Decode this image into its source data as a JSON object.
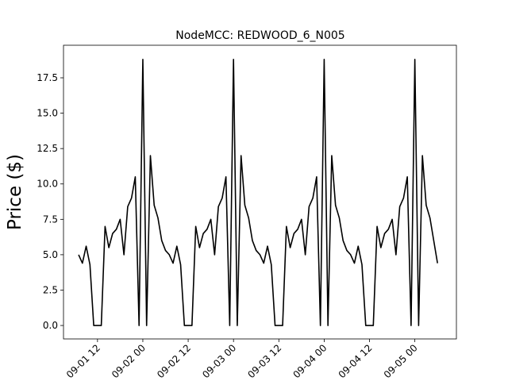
{
  "chart_data": {
    "type": "line",
    "title": "NodeMCC: REDWOOD_6_N005",
    "y_label": "Price ($)",
    "x": [
      "09-01 07",
      "09-01 08",
      "09-01 09",
      "09-01 10",
      "09-01 11",
      "09-01 12",
      "09-01 13",
      "09-01 14",
      "09-01 15",
      "09-01 16",
      "09-01 17",
      "09-01 18",
      "09-01 19",
      "09-01 20",
      "09-01 21",
      "09-01 22",
      "09-01 23",
      "09-02 00",
      "09-02 01",
      "09-02 02",
      "09-02 03",
      "09-02 04",
      "09-02 05",
      "09-02 06",
      "09-02 07",
      "09-02 08",
      "09-02 09",
      "09-02 10",
      "09-02 11",
      "09-02 12",
      "09-02 13",
      "09-02 14",
      "09-02 15",
      "09-02 16",
      "09-02 17",
      "09-02 18",
      "09-02 19",
      "09-02 20",
      "09-02 21",
      "09-02 22",
      "09-02 23",
      "09-03 00",
      "09-03 01",
      "09-03 02",
      "09-03 03",
      "09-03 04",
      "09-03 05",
      "09-03 06",
      "09-03 07",
      "09-03 08",
      "09-03 09",
      "09-03 10",
      "09-03 11",
      "09-03 12",
      "09-03 13",
      "09-03 14",
      "09-03 15",
      "09-03 16",
      "09-03 17",
      "09-03 18",
      "09-03 19",
      "09-03 20",
      "09-03 21",
      "09-03 22",
      "09-03 23",
      "09-04 00",
      "09-04 01",
      "09-04 02",
      "09-04 03",
      "09-04 04",
      "09-04 05",
      "09-04 06",
      "09-04 07",
      "09-04 08",
      "09-04 09",
      "09-04 10",
      "09-04 11",
      "09-04 12",
      "09-04 13",
      "09-04 14",
      "09-04 15",
      "09-04 16",
      "09-04 17",
      "09-04 18",
      "09-04 19",
      "09-04 20",
      "09-04 21",
      "09-04 22",
      "09-04 23",
      "09-05 00",
      "09-05 01",
      "09-05 02",
      "09-05 03",
      "09-05 04",
      "09-05 05",
      "09-05 06"
    ],
    "series": [
      {
        "color": "#000000",
        "values": [
          5.0,
          4.4,
          5.6,
          4.3,
          0,
          0,
          0,
          7.0,
          5.5,
          6.5,
          6.8,
          7.5,
          5.0,
          8.4,
          9.0,
          10.5,
          0,
          18.8,
          0,
          12.0,
          8.5,
          7.6,
          6.0,
          5.3,
          5.0,
          4.4,
          5.6,
          4.3,
          0,
          0,
          0,
          7.0,
          5.5,
          6.5,
          6.8,
          7.5,
          5.0,
          8.4,
          9.0,
          10.5,
          0,
          18.8,
          0,
          12.0,
          8.5,
          7.6,
          6.0,
          5.3,
          5.0,
          4.4,
          5.6,
          4.3,
          0,
          0,
          0,
          7.0,
          5.5,
          6.5,
          6.8,
          7.5,
          5.0,
          8.4,
          9.0,
          10.5,
          0,
          18.8,
          0,
          12.0,
          8.5,
          7.6,
          6.0,
          5.3,
          5.0,
          4.4,
          5.6,
          4.3,
          0,
          0,
          0,
          7.0,
          5.5,
          6.5,
          6.8,
          7.5,
          5.0,
          8.4,
          9.0,
          10.5,
          0,
          18.8,
          0,
          12.0,
          8.5,
          7.6,
          6.0,
          4.4
        ]
      }
    ],
    "xlim": [
      "09-01 03",
      "09-05 11"
    ],
    "xticks": [
      "09-01 12",
      "09-02 00",
      "09-02 12",
      "09-03 00",
      "09-03 12",
      "09-04 00",
      "09-04 12",
      "09-05 00"
    ],
    "ylim": [
      -0.95,
      19.8
    ],
    "yticks": [
      {
        "value": 0,
        "label": "0.0"
      },
      {
        "value": 2.5,
        "label": "2.5"
      },
      {
        "value": 5,
        "label": "5.0"
      },
      {
        "value": 7.5,
        "label": "7.5"
      },
      {
        "value": 10,
        "label": "10.0"
      },
      {
        "value": 12.5,
        "label": "12.5"
      },
      {
        "value": 15,
        "label": "15.0"
      },
      {
        "value": 17.5,
        "label": "17.5"
      }
    ]
  }
}
